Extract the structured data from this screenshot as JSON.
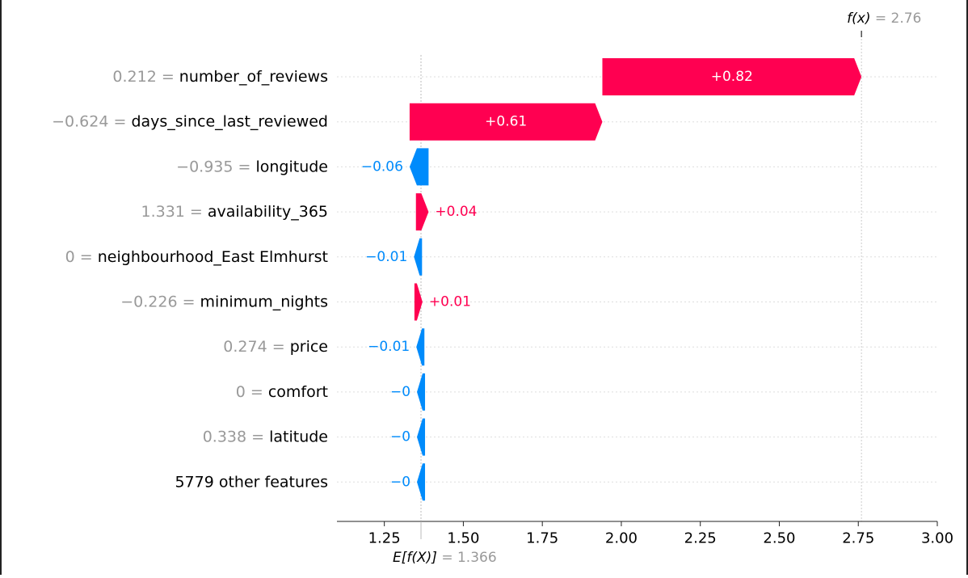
{
  "chart_data": {
    "type": "waterfall",
    "expected_value": {
      "label": "E[f(X)]",
      "value_text": "= 1.366",
      "value": 1.366
    },
    "output_value": {
      "label": "f(x)",
      "value_text": "= 2.76",
      "value": 2.76
    },
    "xlim": [
      1.1,
      3.0
    ],
    "x_ticks": [
      {
        "value": 1.25,
        "label": "1.25"
      },
      {
        "value": 1.5,
        "label": "1.50"
      },
      {
        "value": 1.75,
        "label": "1.75"
      },
      {
        "value": 2.0,
        "label": "2.00"
      },
      {
        "value": 2.25,
        "label": "2.25"
      },
      {
        "value": 2.5,
        "label": "2.50"
      },
      {
        "value": 2.75,
        "label": "2.75"
      },
      {
        "value": 3.0,
        "label": "3.00"
      }
    ],
    "features": [
      {
        "value_text": "0.212 = ",
        "name": "number_of_reviews",
        "contribution": 0.82,
        "label": "+0.82",
        "start": 1.94,
        "end": 2.76
      },
      {
        "value_text": "−0.624 = ",
        "name": "days_since_last_reviewed",
        "contribution": 0.61,
        "label": "+0.61",
        "start": 1.33,
        "end": 1.94
      },
      {
        "value_text": "−0.935 = ",
        "name": "longitude",
        "contribution": -0.06,
        "label": "−0.06",
        "start": 1.39,
        "end": 1.33
      },
      {
        "value_text": "1.331 = ",
        "name": "availability_365",
        "contribution": 0.04,
        "label": "+0.04",
        "start": 1.35,
        "end": 1.39
      },
      {
        "value_text": "0 = ",
        "name": "neighbourhood_East Elmhurst",
        "contribution": -0.01,
        "label": "−0.01",
        "start": 1.363,
        "end": 1.35
      },
      {
        "value_text": "−0.226 = ",
        "name": "minimum_nights",
        "contribution": 0.01,
        "label": "+0.01",
        "start": 1.353,
        "end": 1.363
      },
      {
        "value_text": "0.274 = ",
        "name": "price",
        "contribution": -0.01,
        "label": "−0.01",
        "start": 1.368,
        "end": 1.36
      },
      {
        "value_text": "0 = ",
        "name": "comfort",
        "contribution": 0,
        "label": "−0",
        "start": 1.366,
        "end": 1.366
      },
      {
        "value_text": "0.338 = ",
        "name": "latitude",
        "contribution": 0,
        "label": "−0",
        "start": 1.366,
        "end": 1.366
      },
      {
        "value_text": "",
        "name": "5779 other features",
        "contribution": 0,
        "label": "−0",
        "start": 1.366,
        "end": 1.366
      }
    ],
    "colors": {
      "positive": "#ff0051",
      "negative": "#008bfb",
      "value_text": "#999999",
      "name_text": "#000000"
    },
    "grid": false
  }
}
